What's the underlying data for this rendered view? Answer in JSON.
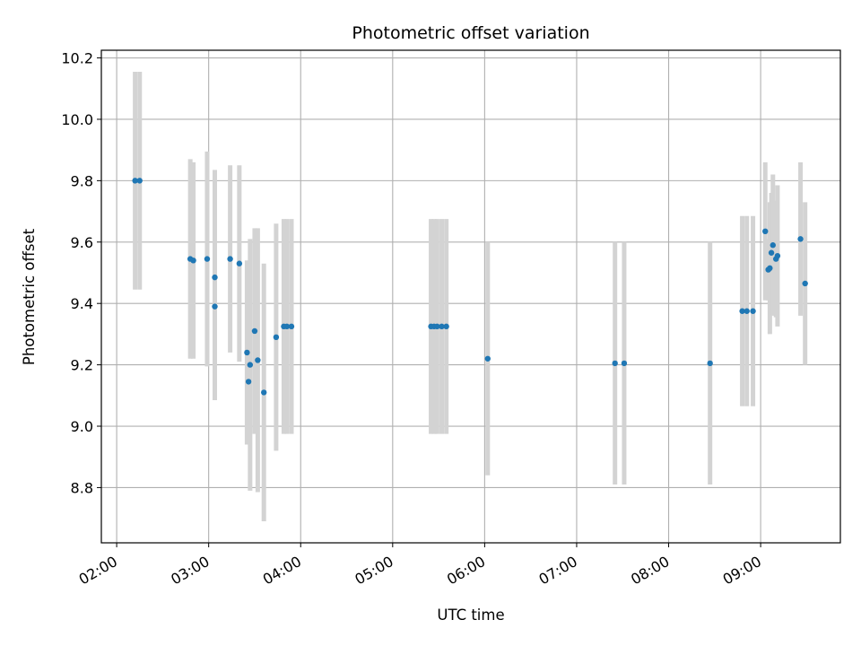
{
  "chart_data": {
    "type": "scatter",
    "title": "Photometric offset variation",
    "xlabel": "UTC time",
    "ylabel": "Photometric offset",
    "xlim": [
      "01:50",
      "09:52"
    ],
    "ylim": [
      8.62,
      10.225
    ],
    "x_ticks": [
      "02:00",
      "03:00",
      "04:00",
      "05:00",
      "06:00",
      "07:00",
      "08:00",
      "09:00"
    ],
    "y_ticks": [
      8.8,
      9.0,
      9.2,
      9.4,
      9.6,
      9.8,
      10.0,
      10.2
    ],
    "grid": true,
    "point_color": "#1f77b4",
    "errorbar_color": "#d3d3d3",
    "points": [
      {
        "x": "02:12",
        "y": 9.8,
        "yerr": 0.355
      },
      {
        "x": "02:15",
        "y": 9.8,
        "yerr": 0.355
      },
      {
        "x": "02:48",
        "y": 9.545,
        "yerr": 0.325
      },
      {
        "x": "02:50",
        "y": 9.54,
        "yerr": 0.32
      },
      {
        "x": "02:59",
        "y": 9.545,
        "yerr": 0.35
      },
      {
        "x": "03:04",
        "y": 9.485,
        "yerr": 0.35
      },
      {
        "x": "03:04",
        "y": 9.39,
        "yerr": 0.305
      },
      {
        "x": "03:14",
        "y": 9.545,
        "yerr": 0.305
      },
      {
        "x": "03:20",
        "y": 9.53,
        "yerr": 0.32
      },
      {
        "x": "03:25",
        "y": 9.24,
        "yerr": 0.3
      },
      {
        "x": "03:26",
        "y": 9.145,
        "yerr": 0.2
      },
      {
        "x": "03:27",
        "y": 9.2,
        "yerr": 0.41
      },
      {
        "x": "03:30",
        "y": 9.31,
        "yerr": 0.335
      },
      {
        "x": "03:32",
        "y": 9.215,
        "yerr": 0.43
      },
      {
        "x": "03:36",
        "y": 9.11,
        "yerr": 0.42
      },
      {
        "x": "03:44",
        "y": 9.29,
        "yerr": 0.37
      },
      {
        "x": "03:49",
        "y": 9.325,
        "yerr": 0.35
      },
      {
        "x": "03:51",
        "y": 9.325,
        "yerr": 0.35
      },
      {
        "x": "03:54",
        "y": 9.325,
        "yerr": 0.35
      },
      {
        "x": "05:25",
        "y": 9.325,
        "yerr": 0.35
      },
      {
        "x": "05:27",
        "y": 9.325,
        "yerr": 0.35
      },
      {
        "x": "05:29",
        "y": 9.325,
        "yerr": 0.35
      },
      {
        "x": "05:32",
        "y": 9.325,
        "yerr": 0.35
      },
      {
        "x": "05:35",
        "y": 9.325,
        "yerr": 0.35
      },
      {
        "x": "06:02",
        "y": 9.22,
        "yerr": 0.38
      },
      {
        "x": "07:25",
        "y": 9.205,
        "yerr": 0.395
      },
      {
        "x": "07:31",
        "y": 9.205,
        "yerr": 0.395
      },
      {
        "x": "08:27",
        "y": 9.205,
        "yerr": 0.395
      },
      {
        "x": "08:48",
        "y": 9.375,
        "yerr": 0.31
      },
      {
        "x": "08:51",
        "y": 9.375,
        "yerr": 0.31
      },
      {
        "x": "08:55",
        "y": 9.375,
        "yerr": 0.31
      },
      {
        "x": "09:03",
        "y": 9.635,
        "yerr": 0.225
      },
      {
        "x": "09:05",
        "y": 9.51,
        "yerr": 0.1
      },
      {
        "x": "09:06",
        "y": 9.515,
        "yerr": 0.215
      },
      {
        "x": "09:07",
        "y": 9.565,
        "yerr": 0.195
      },
      {
        "x": "09:08",
        "y": 9.59,
        "yerr": 0.23
      },
      {
        "x": "09:10",
        "y": 9.545,
        "yerr": 0.19
      },
      {
        "x": "09:11",
        "y": 9.555,
        "yerr": 0.23
      },
      {
        "x": "09:26",
        "y": 9.61,
        "yerr": 0.25
      },
      {
        "x": "09:29",
        "y": 9.465,
        "yerr": 0.265
      }
    ]
  }
}
